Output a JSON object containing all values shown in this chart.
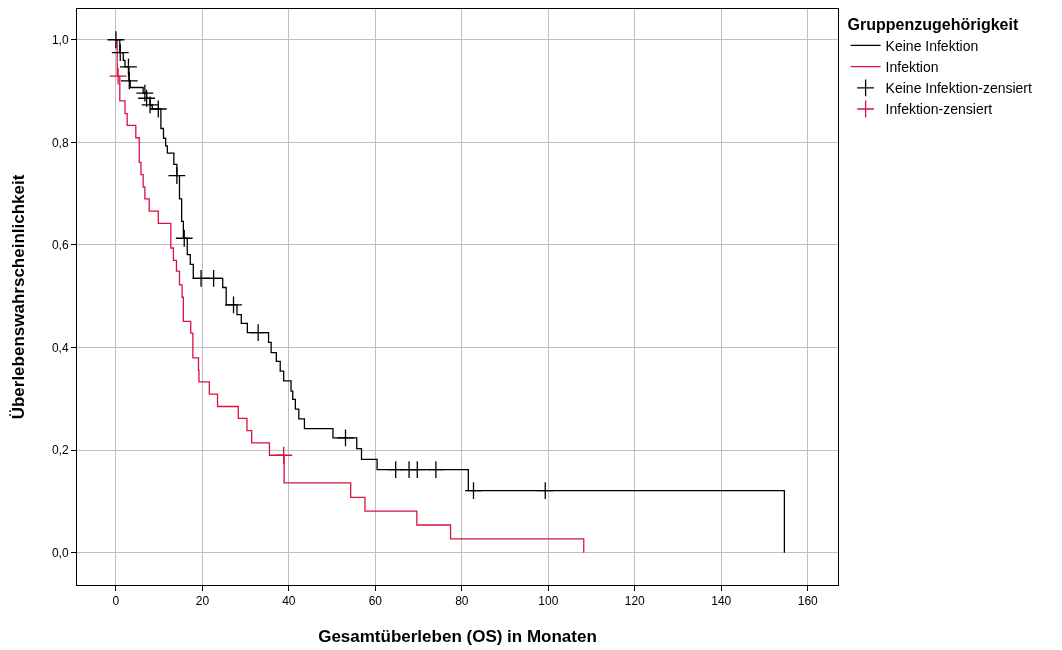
{
  "chart_data": {
    "type": "step",
    "xlabel": "Gesamtüberleben (OS) in Monaten",
    "ylabel": "Überlebenswahrscheinlichkeit",
    "legend_title": "Gruppenzugehörigkeit",
    "series": [
      {
        "name": "Keine Infektion",
        "color": "#000000",
        "x": [
          0,
          0.9,
          1.7,
          2.1,
          3.0,
          3.3,
          6.3,
          7.1,
          7.9,
          8.4,
          10.4,
          11.0,
          11.5,
          11.9,
          13.4,
          14.1,
          14.7,
          15.2,
          15.6,
          16.5,
          17.2,
          17.9,
          24.7,
          25.5,
          28.0,
          29.0,
          30.4,
          35.3,
          35.9,
          37.1,
          38.0,
          38.8,
          40.5,
          40.9,
          41.5,
          42.3,
          43.6,
          50.2,
          55.7,
          56.8,
          60.4,
          81.5,
          154.6
        ],
        "values": [
          1.0,
          0.975,
          0.96,
          0.947,
          0.92,
          0.907,
          0.896,
          0.886,
          0.873,
          0.865,
          0.827,
          0.808,
          0.793,
          0.779,
          0.757,
          0.735,
          0.69,
          0.646,
          0.613,
          0.581,
          0.562,
          0.535,
          0.517,
          0.483,
          0.464,
          0.447,
          0.429,
          0.41,
          0.39,
          0.373,
          0.354,
          0.335,
          0.315,
          0.299,
          0.28,
          0.261,
          0.242,
          0.224,
          0.203,
          0.182,
          0.162,
          0.121,
          0
        ]
      },
      {
        "name": "Infektion",
        "color": "#d9123f",
        "x": [
          0,
          0.3,
          0.9,
          2.1,
          2.6,
          4.6,
          5.4,
          5.8,
          6.3,
          6.7,
          7.7,
          9.8,
          12.7,
          13.3,
          14.0,
          14.7,
          15.3,
          15.6,
          17.3,
          17.8,
          19.1,
          19.2,
          21.6,
          23.5,
          28.3,
          30.3,
          31.4,
          35.5,
          38.9,
          54.3,
          57.6,
          69.6,
          77.4,
          108.2
        ],
        "values": [
          1.0,
          0.929,
          0.881,
          0.856,
          0.833,
          0.809,
          0.761,
          0.737,
          0.713,
          0.69,
          0.666,
          0.642,
          0.594,
          0.57,
          0.549,
          0.522,
          0.498,
          0.451,
          0.428,
          0.38,
          0.356,
          0.333,
          0.309,
          0.285,
          0.262,
          0.238,
          0.214,
          0.19,
          0.136,
          0.108,
          0.081,
          0.054,
          0.027,
          0
        ]
      },
      {
        "name": "Keine Infektion-zensiert",
        "type": "scatter",
        "marker": "cross",
        "color": "#000000",
        "x": [
          0,
          1.0,
          2.9,
          3.1,
          6.7,
          7.1,
          7.9,
          9.8,
          14.1,
          15.8,
          19.7,
          22.6,
          27.2,
          32.9,
          53.1,
          64.7,
          67.8,
          69.7,
          74.0,
          82.7,
          99.3
        ],
        "values": [
          1.0,
          0.975,
          0.947,
          0.92,
          0.896,
          0.886,
          0.873,
          0.865,
          0.735,
          0.613,
          0.535,
          0.535,
          0.483,
          0.429,
          0.224,
          0.162,
          0.162,
          0.162,
          0.162,
          0.121,
          0.121
        ]
      },
      {
        "name": "Infektion-zensiert",
        "type": "scatter",
        "marker": "cross",
        "color": "#d9123f",
        "x": [
          0.5,
          38.8
        ],
        "values": [
          0.929,
          0.19
        ]
      }
    ],
    "xlim": [
      -9,
      167
    ],
    "xticks": [
      0,
      20,
      40,
      60,
      80,
      100,
      120,
      140,
      160
    ],
    "ylim": [
      -0.063,
      1.06
    ],
    "yticks": [
      {
        "value": 0,
        "label": "0,0"
      },
      {
        "value": 0.2,
        "label": "0,2"
      },
      {
        "value": 0.4,
        "label": "0,4"
      },
      {
        "value": 0.6,
        "label": "0,6"
      },
      {
        "value": 0.8,
        "label": "0,8"
      },
      {
        "value": 1.0,
        "label": "1,0"
      }
    ],
    "grid": true,
    "legend": "top right"
  }
}
